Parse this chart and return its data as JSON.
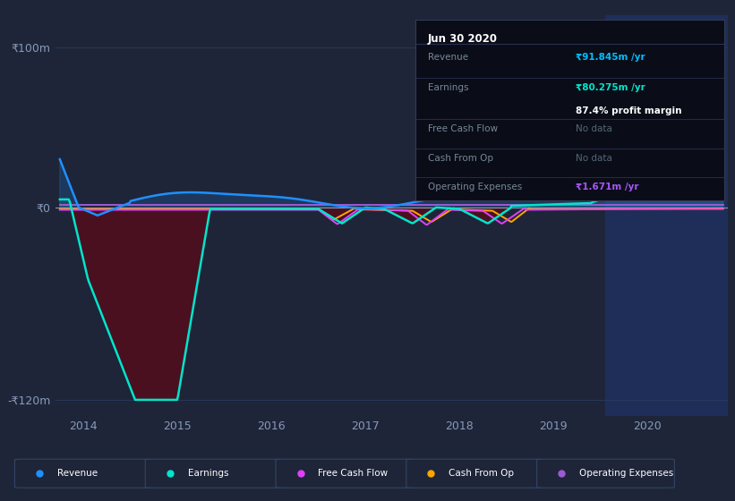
{
  "bg_color": "#1e2538",
  "plot_bg_color": "#1e2538",
  "highlight_bg": "#243060",
  "title_box": {
    "date": "Jun 30 2020",
    "revenue_val": "₹91.845m /yr",
    "earnings_val": "₹80.275m /yr",
    "margin_val": "87.4% profit margin",
    "fcf_val": "No data",
    "cashfromop_val": "No data",
    "opex_val": "₹1.671m /yr",
    "revenue_color": "#00bfff",
    "earnings_color": "#00e5cc",
    "opex_color": "#a855f7"
  },
  "ylim": [
    -130,
    120
  ],
  "xlim": [
    2013.7,
    2020.85
  ],
  "ytick_100_label": "₹100m",
  "ytick_0_label": "₹0",
  "ytick_neg120_label": "-₹120m",
  "xticks": [
    2014,
    2015,
    2016,
    2017,
    2018,
    2019,
    2020
  ],
  "legend": [
    {
      "label": "Revenue",
      "color": "#1e90ff"
    },
    {
      "label": "Earnings",
      "color": "#00e5cc"
    },
    {
      "label": "Free Cash Flow",
      "color": "#e040fb"
    },
    {
      "label": "Cash From Op",
      "color": "#ffa500"
    },
    {
      "label": "Operating Expenses",
      "color": "#9c5bd4"
    }
  ],
  "highlight_x_start": 2019.55,
  "highlight_x_end": 2020.85,
  "revenue_color": "#1e90ff",
  "earnings_color": "#00e5cc",
  "fcf_color": "#e040fb",
  "cashfromop_color": "#ffa500",
  "opex_color": "#9c5bd4",
  "zero_line_color": "#8899aa",
  "grid_color": "#2a3a5e"
}
